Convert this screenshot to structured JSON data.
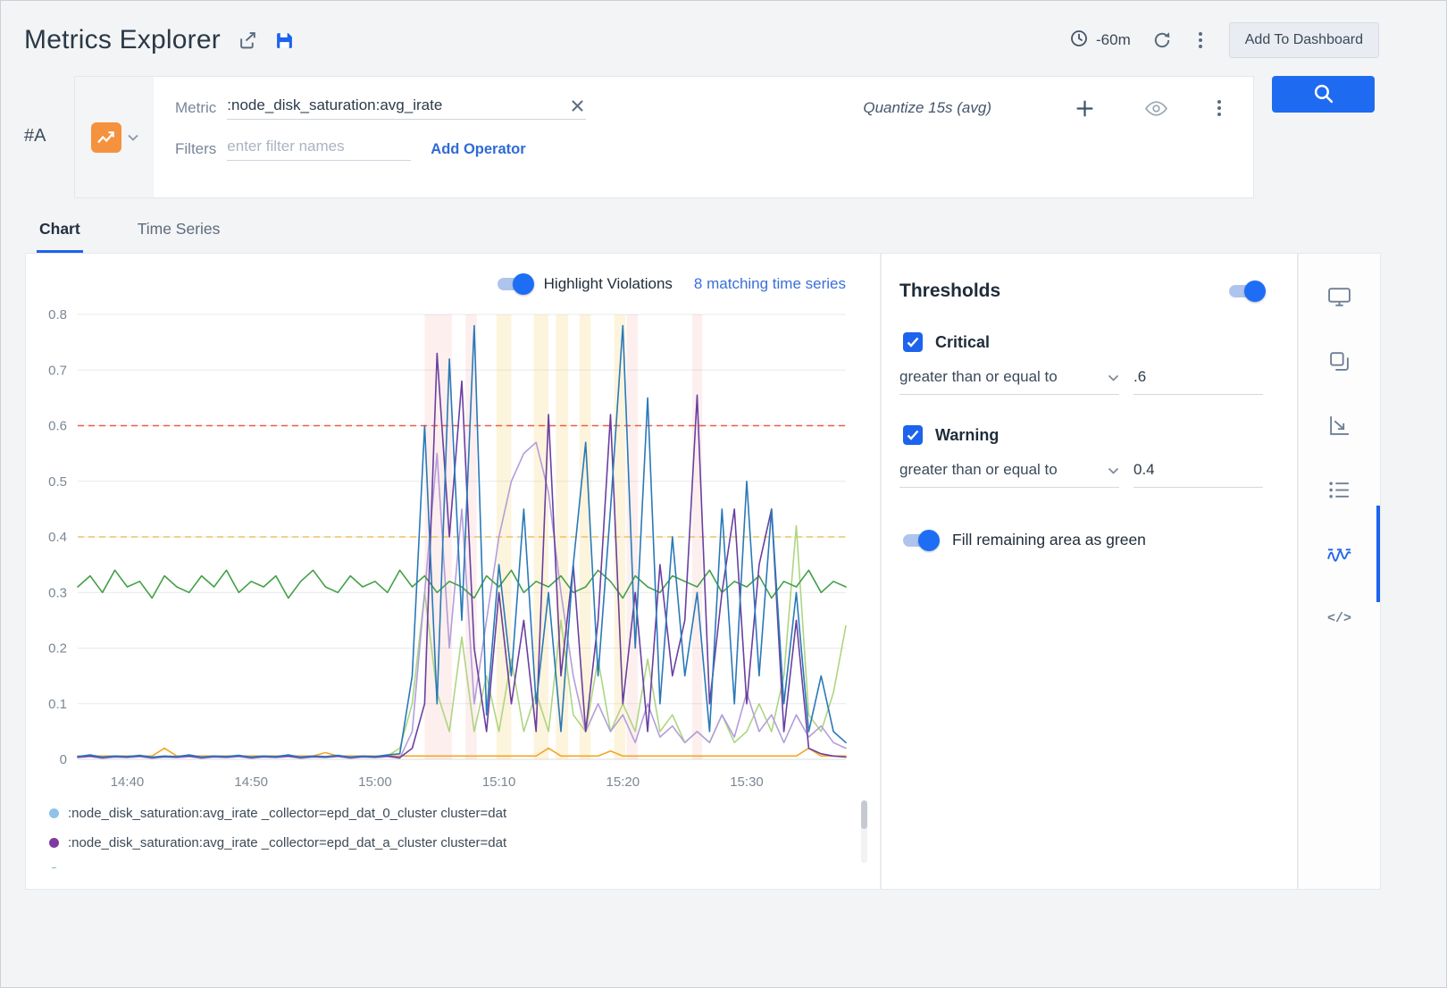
{
  "header": {
    "title": "Metrics Explorer",
    "time_range": "-60m",
    "add_to_dashboard_label": "Add To Dashboard"
  },
  "query": {
    "id": "#A",
    "metric_label": "Metric",
    "metric_value": ":node_disk_saturation:avg_irate",
    "quantize": "Quantize 15s (avg)",
    "filters_label": "Filters",
    "filters_placeholder": "enter filter names",
    "add_operator_label": "Add Operator"
  },
  "tabs": {
    "items": [
      {
        "label": "Chart"
      },
      {
        "label": "Time Series"
      }
    ],
    "active": "Chart"
  },
  "chart": {
    "highlight_toggle_label": "Highlight Violations",
    "highlight_on": true,
    "matching_text": "8 matching time series",
    "legend": [
      {
        "color": "#8fc3e8",
        "label": ":node_disk_saturation:avg_irate _collector=epd_dat_0_cluster cluster=dat"
      },
      {
        "color": "#7e3a9e",
        "label": ":node_disk_saturation:avg_irate _collector=epd_dat_a_cluster cluster=dat"
      },
      {
        "color": "#66bb6a",
        "label": ""
      }
    ]
  },
  "chart_data": {
    "type": "line",
    "title": "",
    "xlabel": "",
    "ylabel": "",
    "ylim": [
      0,
      0.8
    ],
    "y_ticks": [
      0,
      0.1,
      0.2,
      0.3,
      0.4,
      0.5,
      0.6,
      0.7,
      0.8
    ],
    "x_domain": [
      0,
      62
    ],
    "x_start_time": "14:36",
    "x_ticks": [
      {
        "t": 4,
        "label": "14:40"
      },
      {
        "t": 14,
        "label": "14:50"
      },
      {
        "t": 24,
        "label": "15:00"
      },
      {
        "t": 34,
        "label": "15:10"
      },
      {
        "t": 44,
        "label": "15:20"
      },
      {
        "t": 54,
        "label": "15:30"
      }
    ],
    "grid": true,
    "legend_position": "bottom",
    "thresholds": [
      {
        "level": "critical",
        "value": 0.6,
        "color": "#f05a43"
      },
      {
        "level": "warning",
        "value": 0.4,
        "color": "#f0c063"
      }
    ],
    "band_colors": {
      "critical": "rgba(240,100,85,0.10)",
      "warning": "rgba(245,205,100,0.22)"
    },
    "violation_bands": [
      {
        "from": 28.0,
        "to": 30.2,
        "level": "critical"
      },
      {
        "from": 31.3,
        "to": 32.2,
        "level": "critical"
      },
      {
        "from": 44.3,
        "to": 45.2,
        "level": "critical"
      },
      {
        "from": 49.6,
        "to": 50.4,
        "level": "critical"
      },
      {
        "from": 33.8,
        "to": 35.0,
        "level": "warning"
      },
      {
        "from": 36.8,
        "to": 38.0,
        "level": "warning"
      },
      {
        "from": 38.6,
        "to": 39.6,
        "level": "warning"
      },
      {
        "from": 40.5,
        "to": 41.4,
        "level": "warning"
      },
      {
        "from": 43.3,
        "to": 44.2,
        "level": "warning"
      }
    ],
    "series": [
      {
        "color": "#f5a623",
        "values": [
          0.006,
          0.006,
          0.006,
          0.006,
          0.006,
          0.006,
          0.006,
          0.02,
          0.006,
          0.006,
          0.006,
          0.006,
          0.006,
          0.006,
          0.006,
          0.006,
          0.006,
          0.006,
          0.006,
          0.006,
          0.012,
          0.006,
          0.006,
          0.006,
          0.006,
          0.006,
          0.006,
          0.006,
          0.006,
          0.006,
          0.006,
          0.006,
          0.006,
          0.006,
          0.006,
          0.006,
          0.006,
          0.006,
          0.02,
          0.006,
          0.006,
          0.006,
          0.006,
          0.015,
          0.006,
          0.006,
          0.006,
          0.006,
          0.006,
          0.006,
          0.006,
          0.006,
          0.006,
          0.006,
          0.006,
          0.006,
          0.006,
          0.006,
          0.006,
          0.02,
          0.006,
          0.006,
          0.006
        ]
      },
      {
        "color": "#aed581",
        "values": [
          0.004,
          0.006,
          0.003,
          0.005,
          0.004,
          0.006,
          0.003,
          0.005,
          0.004,
          0.006,
          0.003,
          0.005,
          0.004,
          0.006,
          0.003,
          0.005,
          0.004,
          0.006,
          0.003,
          0.005,
          0.004,
          0.006,
          0.003,
          0.005,
          0.004,
          0.006,
          0.02,
          0.1,
          0.3,
          0.12,
          0.05,
          0.22,
          0.05,
          0.15,
          0.05,
          0.18,
          0.05,
          0.12,
          0.05,
          0.25,
          0.08,
          0.05,
          0.18,
          0.05,
          0.1,
          0.05,
          0.18,
          0.05,
          0.08,
          0.03,
          0.05,
          0.03,
          0.08,
          0.03,
          0.05,
          0.1,
          0.05,
          0.15,
          0.42,
          0.08,
          0.05,
          0.12,
          0.24
        ]
      },
      {
        "color": "#b39ddb",
        "values": [
          0.003,
          0.005,
          0.002,
          0.004,
          0.003,
          0.005,
          0.002,
          0.004,
          0.003,
          0.005,
          0.002,
          0.004,
          0.003,
          0.005,
          0.002,
          0.004,
          0.003,
          0.005,
          0.002,
          0.004,
          0.003,
          0.005,
          0.002,
          0.004,
          0.003,
          0.005,
          0.002,
          0.05,
          0.3,
          0.55,
          0.2,
          0.45,
          0.1,
          0.25,
          0.4,
          0.5,
          0.55,
          0.57,
          0.48,
          0.3,
          0.15,
          0.05,
          0.1,
          0.05,
          0.08,
          0.03,
          0.1,
          0.04,
          0.06,
          0.03,
          0.05,
          0.03,
          0.08,
          0.04,
          0.12,
          0.05,
          0.08,
          0.03,
          0.08,
          0.04,
          0.06,
          0.03,
          0.02
        ]
      },
      {
        "color": "#43a047",
        "values": [
          0.31,
          0.33,
          0.3,
          0.34,
          0.31,
          0.32,
          0.29,
          0.33,
          0.31,
          0.3,
          0.33,
          0.31,
          0.34,
          0.3,
          0.32,
          0.31,
          0.33,
          0.29,
          0.32,
          0.34,
          0.31,
          0.3,
          0.33,
          0.31,
          0.32,
          0.3,
          0.34,
          0.31,
          0.33,
          0.3,
          0.32,
          0.31,
          0.29,
          0.33,
          0.31,
          0.34,
          0.3,
          0.32,
          0.31,
          0.33,
          0.3,
          0.31,
          0.34,
          0.32,
          0.29,
          0.33,
          0.31,
          0.3,
          0.33,
          0.32,
          0.31,
          0.34,
          0.3,
          0.32,
          0.31,
          0.33,
          0.29,
          0.32,
          0.31,
          0.34,
          0.3,
          0.32,
          0.31
        ]
      },
      {
        "color": "#6a3fa0",
        "values": [
          0.004,
          0.006,
          0.003,
          0.005,
          0.004,
          0.006,
          0.003,
          0.005,
          0.004,
          0.006,
          0.003,
          0.005,
          0.004,
          0.006,
          0.003,
          0.005,
          0.004,
          0.006,
          0.003,
          0.005,
          0.004,
          0.006,
          0.003,
          0.005,
          0.004,
          0.006,
          0.003,
          0.02,
          0.1,
          0.73,
          0.4,
          0.68,
          0.2,
          0.05,
          0.3,
          0.1,
          0.25,
          0.05,
          0.62,
          0.15,
          0.35,
          0.05,
          0.25,
          0.62,
          0.1,
          0.3,
          0.05,
          0.35,
          0.15,
          0.25,
          0.655,
          0.1,
          0.3,
          0.45,
          0.1,
          0.35,
          0.45,
          0.05,
          0.25,
          0.02,
          0.01,
          0.006,
          0.004
        ]
      },
      {
        "color": "#2979b8",
        "values": [
          0.005,
          0.008,
          0.004,
          0.006,
          0.005,
          0.007,
          0.004,
          0.006,
          0.005,
          0.008,
          0.004,
          0.006,
          0.005,
          0.007,
          0.004,
          0.006,
          0.005,
          0.008,
          0.004,
          0.006,
          0.005,
          0.007,
          0.004,
          0.006,
          0.005,
          0.008,
          0.01,
          0.15,
          0.6,
          0.1,
          0.72,
          0.25,
          0.78,
          0.08,
          0.35,
          0.15,
          0.45,
          0.1,
          0.3,
          0.05,
          0.35,
          0.57,
          0.15,
          0.45,
          0.78,
          0.2,
          0.65,
          0.1,
          0.4,
          0.15,
          0.3,
          0.05,
          0.45,
          0.1,
          0.5,
          0.15,
          0.45,
          0.1,
          0.3,
          0.05,
          0.15,
          0.05,
          0.03
        ]
      }
    ]
  },
  "thresholds_panel": {
    "title": "Thresholds",
    "enabled": true,
    "critical": {
      "label": "Critical",
      "checked": true,
      "operator": "greater than or equal to",
      "value": ".6"
    },
    "warning": {
      "label": "Warning",
      "checked": true,
      "operator": "greater than or equal to",
      "value": "0.4"
    },
    "fill_label": "Fill remaining area as green",
    "fill_on": true
  },
  "rail": {
    "active": "threshold-wave",
    "code_glyph": "</>"
  },
  "colors": {
    "accent": "#1d63ed",
    "critical": "#f05a43",
    "warning": "#f0c063",
    "link": "#2e6bd6"
  }
}
